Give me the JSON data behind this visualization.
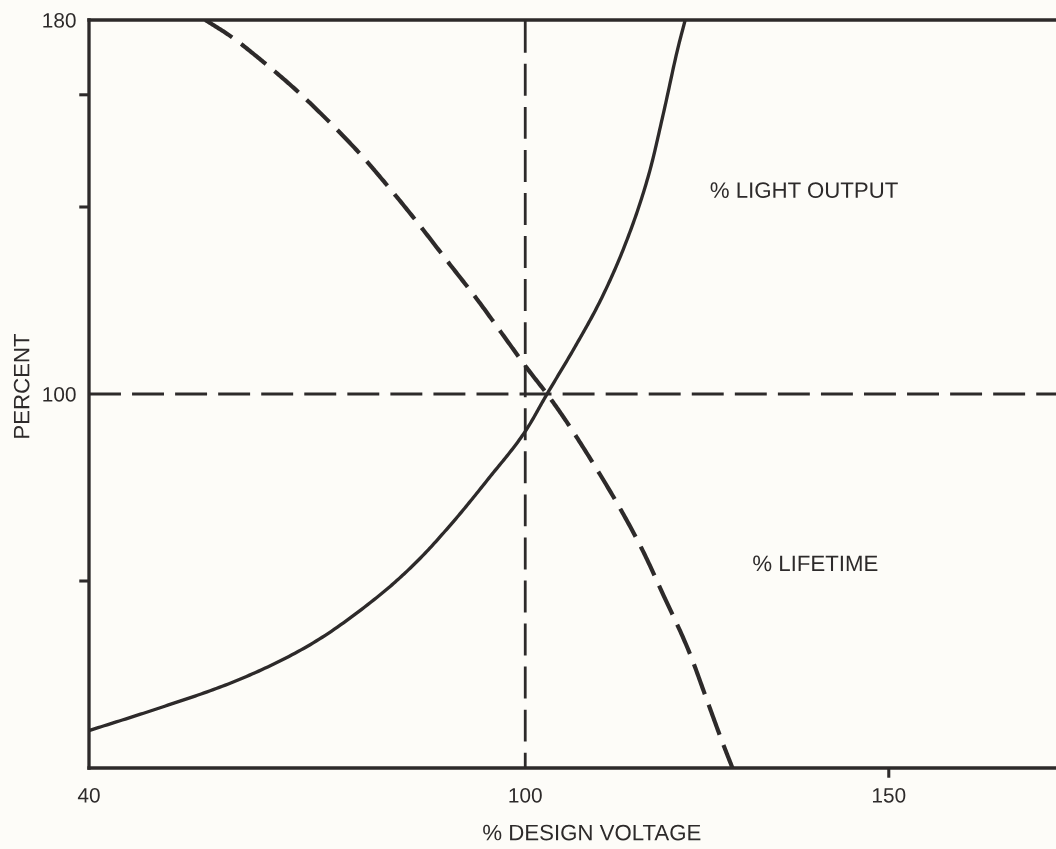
{
  "chart_data": {
    "type": "line",
    "xlabel": "% DESIGN VOLTAGE",
    "ylabel": "PERCENT",
    "xlim": [
      40,
      173
    ],
    "ylim": [
      20,
      180
    ],
    "xticks": [
      40,
      100,
      150
    ],
    "yticks": [
      {
        "value": 60,
        "label": null
      },
      100,
      {
        "value": 140,
        "label": null
      },
      {
        "value": 164,
        "label": null
      },
      180
    ],
    "grid": false,
    "ref_lines": [
      {
        "axis": "x",
        "value": 100,
        "line_style": "dashed",
        "color": "#2d2a2a"
      },
      {
        "axis": "y",
        "value": 100,
        "line_style": "dashed",
        "color": "#2d2a2a"
      }
    ],
    "series": [
      {
        "name": "% LIGHT OUTPUT",
        "color": "#2d2a2a",
        "line_style": "solid",
        "x": [
          40,
          50,
          60,
          70,
          80,
          85,
          90,
          95,
          100,
          103,
          107,
          110.5,
          114,
          117,
          119,
          121,
          122
        ],
        "values": [
          28,
          33,
          38.5,
          46,
          57,
          64,
          72.5,
          82,
          92,
          100,
          110.5,
          120.5,
          133,
          147,
          160,
          174,
          180
        ]
      },
      {
        "name": "% LIFETIME",
        "color": "#2d2a2a",
        "line_style": "dashed",
        "x": [
          56,
          59.5,
          64,
          68.5,
          73.5,
          77.5,
          80,
          84.5,
          89.5,
          93.5,
          97,
          100.5,
          103,
          105.5,
          108,
          112.5,
          116,
          119,
          122.5,
          125,
          127,
          128.5
        ],
        "values": [
          180,
          176.5,
          171,
          165,
          157.5,
          151,
          146.5,
          138,
          128,
          120,
          112.5,
          105,
          100,
          94.5,
          88.5,
          77,
          67,
          57,
          45,
          34.5,
          26,
          20
        ]
      }
    ]
  }
}
